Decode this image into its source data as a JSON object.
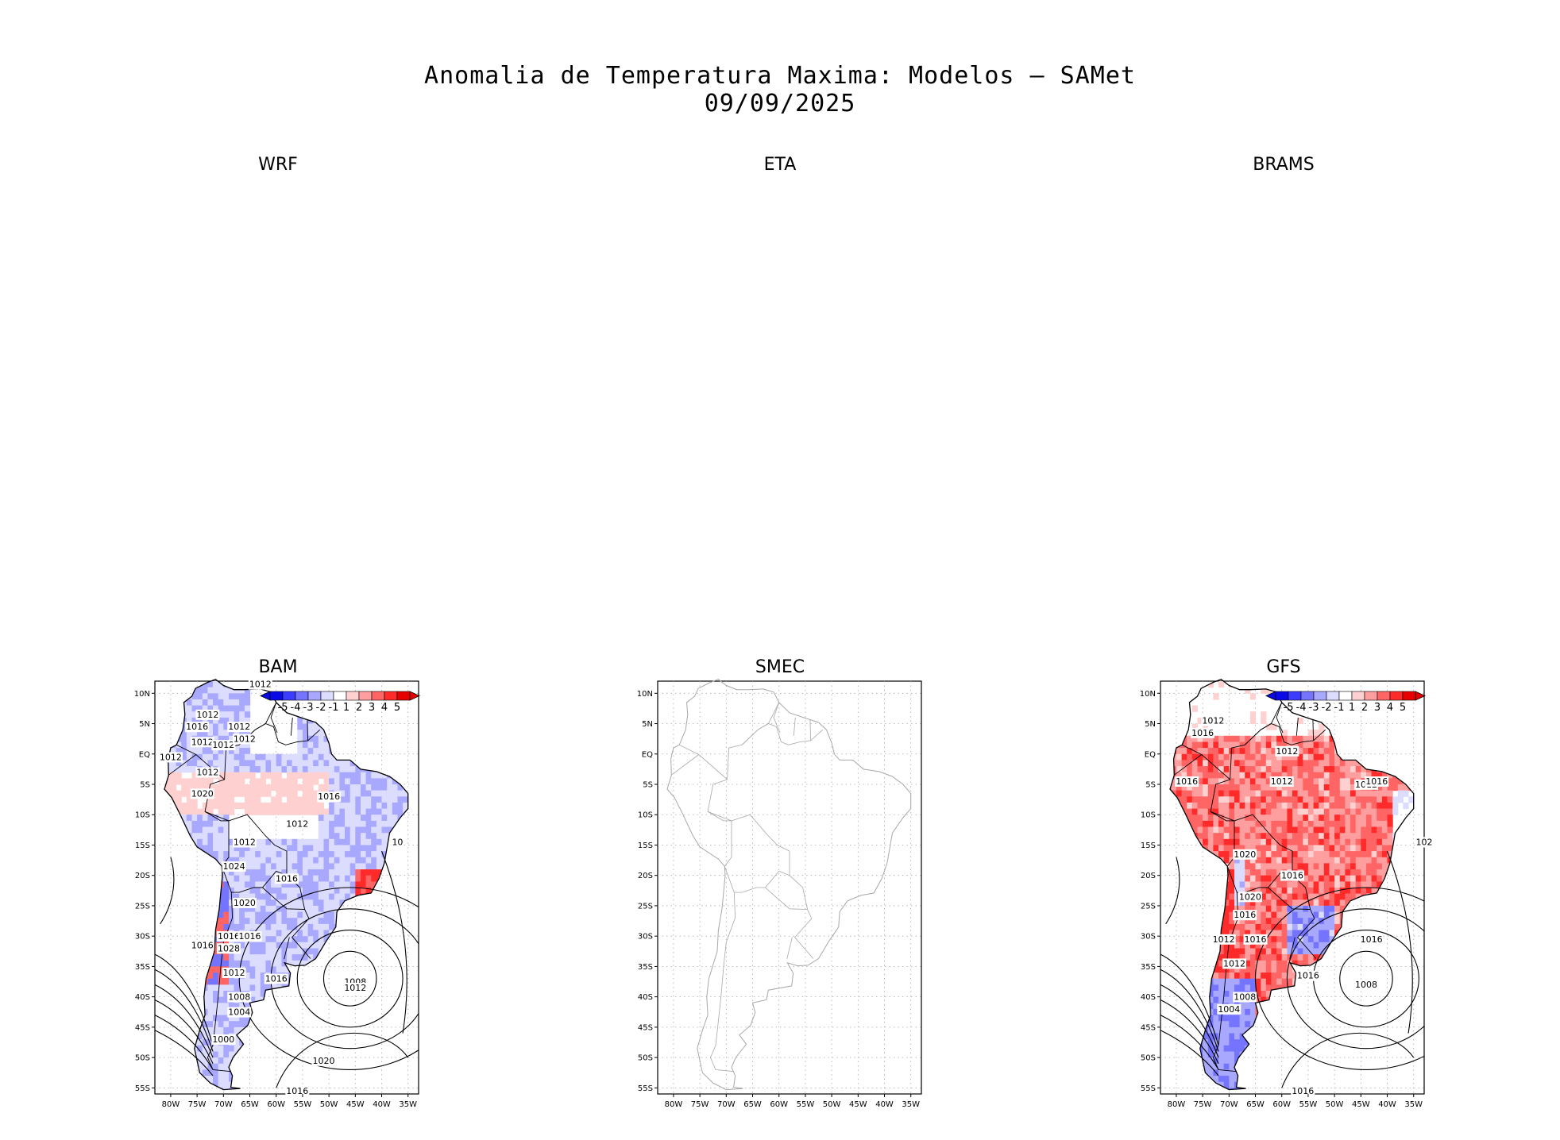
{
  "header": {
    "title_line1": "Anomalia de Temperatura Maxima: Modelos — SAMet",
    "title_line2": "09/09/2025"
  },
  "panels": {
    "wrf": {
      "label": "WRF"
    },
    "eta": {
      "label": "ETA"
    },
    "brams": {
      "label": "BRAMS"
    },
    "bam": {
      "label": "BAM"
    },
    "smec": {
      "label": "SMEC"
    },
    "gfs": {
      "label": "GFS"
    }
  },
  "chart_data": [
    {
      "type": "heatmap",
      "title": "BAM",
      "has_data": true,
      "dominant_anomaly": "negative",
      "x_ticks": [
        "80W",
        "75W",
        "70W",
        "65W",
        "60W",
        "55W",
        "50W",
        "45W",
        "40W",
        "35W"
      ],
      "y_ticks": [
        "10N",
        "5N",
        "EQ",
        "5S",
        "10S",
        "15S",
        "20S",
        "25S",
        "30S",
        "35S",
        "40S",
        "45S",
        "50S",
        "55S"
      ],
      "xlim": [
        -83,
        -33
      ],
      "ylim": [
        -56,
        12
      ],
      "colorbar": {
        "labels": [
          "-5",
          "-4",
          "-3",
          "-2",
          "-1",
          "1",
          "2",
          "3",
          "4",
          "5"
        ]
      },
      "isobar_labels": [
        "1012",
        "1012",
        "1016",
        "1012",
        "1012",
        "1012",
        "1012",
        "1012",
        "1012",
        "1020",
        "1016",
        "1012",
        "1012",
        "1024",
        "1016",
        "1020",
        "1016",
        "1016",
        "1016",
        "1028",
        "1012",
        "1016",
        "1008",
        "1004",
        "1000",
        "1008",
        "1012",
        "1020",
        "1016",
        "10"
      ]
    },
    {
      "type": "heatmap",
      "title": "SMEC",
      "has_data": false,
      "x_ticks": [
        "80W",
        "75W",
        "70W",
        "65W",
        "60W",
        "55W",
        "50W",
        "45W",
        "40W",
        "35W"
      ],
      "y_ticks": [
        "10N",
        "5N",
        "EQ",
        "5S",
        "10S",
        "15S",
        "20S",
        "25S",
        "30S",
        "35S",
        "40S",
        "45S",
        "50S",
        "55S"
      ],
      "xlim": [
        -83,
        -33
      ],
      "ylim": [
        -56,
        12
      ]
    },
    {
      "type": "heatmap",
      "title": "GFS",
      "has_data": true,
      "dominant_anomaly": "positive",
      "x_ticks": [
        "80W",
        "75W",
        "70W",
        "65W",
        "60W",
        "55W",
        "50W",
        "45W",
        "40W",
        "35W"
      ],
      "y_ticks": [
        "10N",
        "5N",
        "EQ",
        "5S",
        "10S",
        "15S",
        "20S",
        "25S",
        "30S",
        "35S",
        "40S",
        "45S",
        "50S",
        "55S"
      ],
      "xlim": [
        -83,
        -33
      ],
      "ylim": [
        -56,
        12
      ],
      "colorbar": {
        "labels": [
          "-5",
          "-4",
          "-3",
          "-2",
          "-1",
          "1",
          "2",
          "3",
          "4",
          "5"
        ]
      },
      "isobar_labels": [
        "1012",
        "1016",
        "1012",
        "1016",
        "1012",
        "1012",
        "1016",
        "1020",
        "1016",
        "1020",
        "1016",
        "1016",
        "1012",
        "1016",
        "1012",
        "1016",
        "1008",
        "1004",
        "1008",
        "1016",
        "102"
      ]
    }
  ]
}
